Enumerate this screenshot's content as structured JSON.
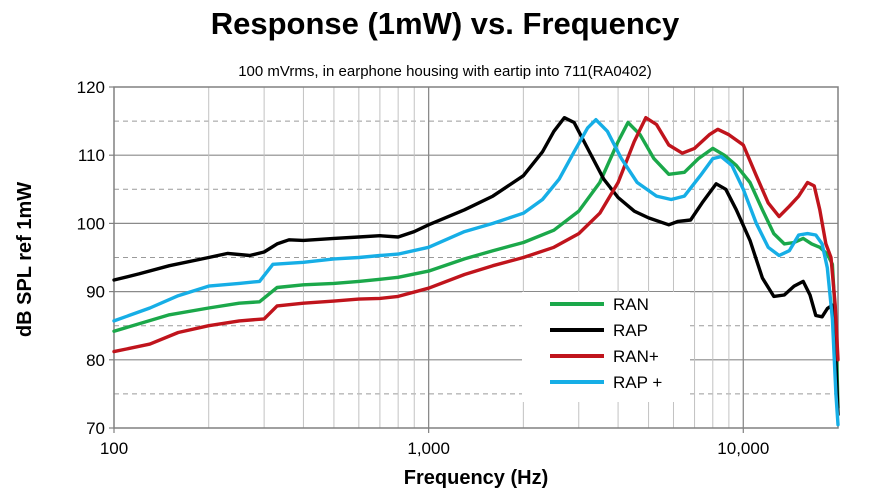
{
  "chart_data": {
    "type": "line",
    "title": "Response (1mW) vs. Frequency",
    "subtitle": "100 mVrms, in earphone housing with eartip into 711(RA0402)",
    "xlabel": "Frequency (Hz)",
    "ylabel": "dB SPL ref 1mW",
    "xscale": "log",
    "xlim": [
      100,
      20000
    ],
    "ylim": [
      70,
      120
    ],
    "x_ticks": [
      100,
      1000,
      10000
    ],
    "x_tick_labels": [
      "100",
      "1,000",
      "10,000"
    ],
    "y_ticks": [
      70,
      80,
      90,
      100,
      110,
      120
    ],
    "y_tick_labels": [
      "70",
      "80",
      "90",
      "100",
      "110",
      "120"
    ],
    "grid": true,
    "legend_position": "lower-center-right",
    "series": [
      {
        "name": "RAN",
        "color": "#1BA84A",
        "points": [
          [
            100,
            84.2
          ],
          [
            150,
            86.6
          ],
          [
            200,
            87.6
          ],
          [
            250,
            88.3
          ],
          [
            290,
            88.5
          ],
          [
            330,
            90.6
          ],
          [
            400,
            91.0
          ],
          [
            500,
            91.2
          ],
          [
            600,
            91.5
          ],
          [
            700,
            91.8
          ],
          [
            800,
            92.1
          ],
          [
            1000,
            93.0
          ],
          [
            1300,
            94.8
          ],
          [
            1600,
            96.0
          ],
          [
            2000,
            97.2
          ],
          [
            2500,
            99.0
          ],
          [
            3000,
            101.8
          ],
          [
            3500,
            106.0
          ],
          [
            4000,
            112.0
          ],
          [
            4300,
            114.8
          ],
          [
            4700,
            113.0
          ],
          [
            5200,
            109.5
          ],
          [
            5800,
            107.2
          ],
          [
            6500,
            107.5
          ],
          [
            7200,
            109.5
          ],
          [
            8000,
            111.0
          ],
          [
            8700,
            110.0
          ],
          [
            9500,
            108.5
          ],
          [
            10500,
            106.0
          ],
          [
            11500,
            102.0
          ],
          [
            12500,
            98.5
          ],
          [
            13500,
            97.0
          ],
          [
            14500,
            97.2
          ],
          [
            15500,
            97.8
          ],
          [
            16500,
            97.0
          ],
          [
            17500,
            96.5
          ],
          [
            18500,
            95.5
          ],
          [
            19200,
            94.0
          ],
          [
            19700,
            85.0
          ],
          [
            20000,
            73.0
          ]
        ]
      },
      {
        "name": "RAP",
        "color": "#000000",
        "points": [
          [
            100,
            91.7
          ],
          [
            120,
            92.6
          ],
          [
            150,
            93.8
          ],
          [
            200,
            95.0
          ],
          [
            230,
            95.6
          ],
          [
            270,
            95.3
          ],
          [
            300,
            95.8
          ],
          [
            330,
            97.0
          ],
          [
            360,
            97.6
          ],
          [
            400,
            97.5
          ],
          [
            500,
            97.8
          ],
          [
            600,
            98.0
          ],
          [
            700,
            98.2
          ],
          [
            800,
            98.0
          ],
          [
            900,
            98.8
          ],
          [
            1000,
            99.8
          ],
          [
            1300,
            102.0
          ],
          [
            1600,
            104.0
          ],
          [
            2000,
            107.0
          ],
          [
            2300,
            110.5
          ],
          [
            2500,
            113.5
          ],
          [
            2700,
            115.5
          ],
          [
            2900,
            114.8
          ],
          [
            3200,
            111.0
          ],
          [
            3600,
            106.5
          ],
          [
            4000,
            103.8
          ],
          [
            4500,
            101.8
          ],
          [
            5000,
            100.8
          ],
          [
            5800,
            99.8
          ],
          [
            6200,
            100.3
          ],
          [
            6800,
            100.5
          ],
          [
            7400,
            103.0
          ],
          [
            8200,
            105.8
          ],
          [
            8800,
            105.0
          ],
          [
            9500,
            102.0
          ],
          [
            10500,
            97.5
          ],
          [
            11500,
            92.0
          ],
          [
            12500,
            89.3
          ],
          [
            13500,
            89.5
          ],
          [
            14500,
            90.8
          ],
          [
            15500,
            91.5
          ],
          [
            16300,
            89.5
          ],
          [
            17000,
            86.5
          ],
          [
            17800,
            86.3
          ],
          [
            18500,
            87.5
          ],
          [
            19200,
            88.0
          ],
          [
            19700,
            80.0
          ],
          [
            20000,
            72.0
          ]
        ]
      },
      {
        "name": "RAN+",
        "color": "#C0141C",
        "points": [
          [
            100,
            81.2
          ],
          [
            130,
            82.3
          ],
          [
            160,
            84.0
          ],
          [
            200,
            85.0
          ],
          [
            250,
            85.7
          ],
          [
            300,
            86.0
          ],
          [
            330,
            87.9
          ],
          [
            400,
            88.3
          ],
          [
            500,
            88.6
          ],
          [
            600,
            88.9
          ],
          [
            700,
            89.0
          ],
          [
            800,
            89.3
          ],
          [
            1000,
            90.5
          ],
          [
            1300,
            92.5
          ],
          [
            1600,
            93.8
          ],
          [
            2000,
            95.0
          ],
          [
            2500,
            96.5
          ],
          [
            3000,
            98.5
          ],
          [
            3500,
            101.5
          ],
          [
            4000,
            106.0
          ],
          [
            4500,
            112.0
          ],
          [
            4900,
            115.5
          ],
          [
            5300,
            114.5
          ],
          [
            5800,
            111.5
          ],
          [
            6400,
            110.3
          ],
          [
            7000,
            111.0
          ],
          [
            7800,
            113.0
          ],
          [
            8300,
            113.8
          ],
          [
            9000,
            113.0
          ],
          [
            10000,
            111.5
          ],
          [
            11000,
            107.0
          ],
          [
            12000,
            103.0
          ],
          [
            13000,
            101.0
          ],
          [
            14000,
            102.5
          ],
          [
            15000,
            104.0
          ],
          [
            16000,
            106.0
          ],
          [
            16800,
            105.5
          ],
          [
            17500,
            102.0
          ],
          [
            18300,
            97.0
          ],
          [
            19000,
            95.0
          ],
          [
            19600,
            88.0
          ],
          [
            20000,
            80.0
          ]
        ]
      },
      {
        "name": "RAP +",
        "color": "#16AEE6",
        "points": [
          [
            100,
            85.7
          ],
          [
            130,
            87.6
          ],
          [
            160,
            89.4
          ],
          [
            200,
            90.8
          ],
          [
            250,
            91.2
          ],
          [
            290,
            91.5
          ],
          [
            320,
            94.0
          ],
          [
            400,
            94.3
          ],
          [
            500,
            94.8
          ],
          [
            600,
            95.0
          ],
          [
            700,
            95.3
          ],
          [
            800,
            95.5
          ],
          [
            1000,
            96.5
          ],
          [
            1300,
            98.8
          ],
          [
            1600,
            100.0
          ],
          [
            2000,
            101.5
          ],
          [
            2300,
            103.5
          ],
          [
            2600,
            106.5
          ],
          [
            2900,
            110.5
          ],
          [
            3200,
            114.0
          ],
          [
            3400,
            115.2
          ],
          [
            3700,
            113.5
          ],
          [
            4100,
            109.5
          ],
          [
            4600,
            106.0
          ],
          [
            5300,
            104.0
          ],
          [
            5900,
            103.5
          ],
          [
            6500,
            104.0
          ],
          [
            7300,
            107.0
          ],
          [
            8000,
            109.5
          ],
          [
            8500,
            109.8
          ],
          [
            9200,
            108.5
          ],
          [
            10000,
            105.0
          ],
          [
            11000,
            100.0
          ],
          [
            12000,
            96.5
          ],
          [
            13000,
            95.3
          ],
          [
            14000,
            96.0
          ],
          [
            15000,
            98.3
          ],
          [
            16000,
            98.5
          ],
          [
            17000,
            98.3
          ],
          [
            17800,
            97.0
          ],
          [
            18500,
            93.5
          ],
          [
            19200,
            86.0
          ],
          [
            19700,
            75.0
          ],
          [
            20000,
            70.5
          ]
        ]
      }
    ]
  }
}
